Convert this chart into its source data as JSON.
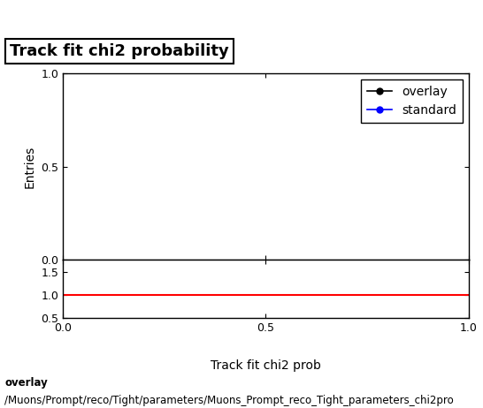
{
  "title": "Track fit chi2 probability",
  "ylabel_main": "Entries",
  "xlabel": "Track fit chi2 prob",
  "xlim": [
    0,
    1
  ],
  "ylim_main": [
    0,
    1
  ],
  "ylim_ratio": [
    0.5,
    1.75
  ],
  "yticks_main": [
    0,
    0.5,
    1
  ],
  "yticks_ratio": [
    0.5,
    1,
    1.5
  ],
  "xticks": [
    0,
    0.5,
    1
  ],
  "legend_overlay_color": "#000000",
  "legend_standard_color": "#0000ff",
  "ratio_line_color": "#ff0000",
  "ratio_line_y": 1.0,
  "background_color": "#ffffff",
  "footer_line1": "overlay",
  "footer_line2": "/Muons/Prompt/reco/Tight/parameters/Muons_Prompt_reco_Tight_parameters_chi2pro",
  "title_fontsize": 13,
  "label_fontsize": 10,
  "tick_fontsize": 9,
  "legend_fontsize": 10,
  "footer_fontsize": 8.5
}
